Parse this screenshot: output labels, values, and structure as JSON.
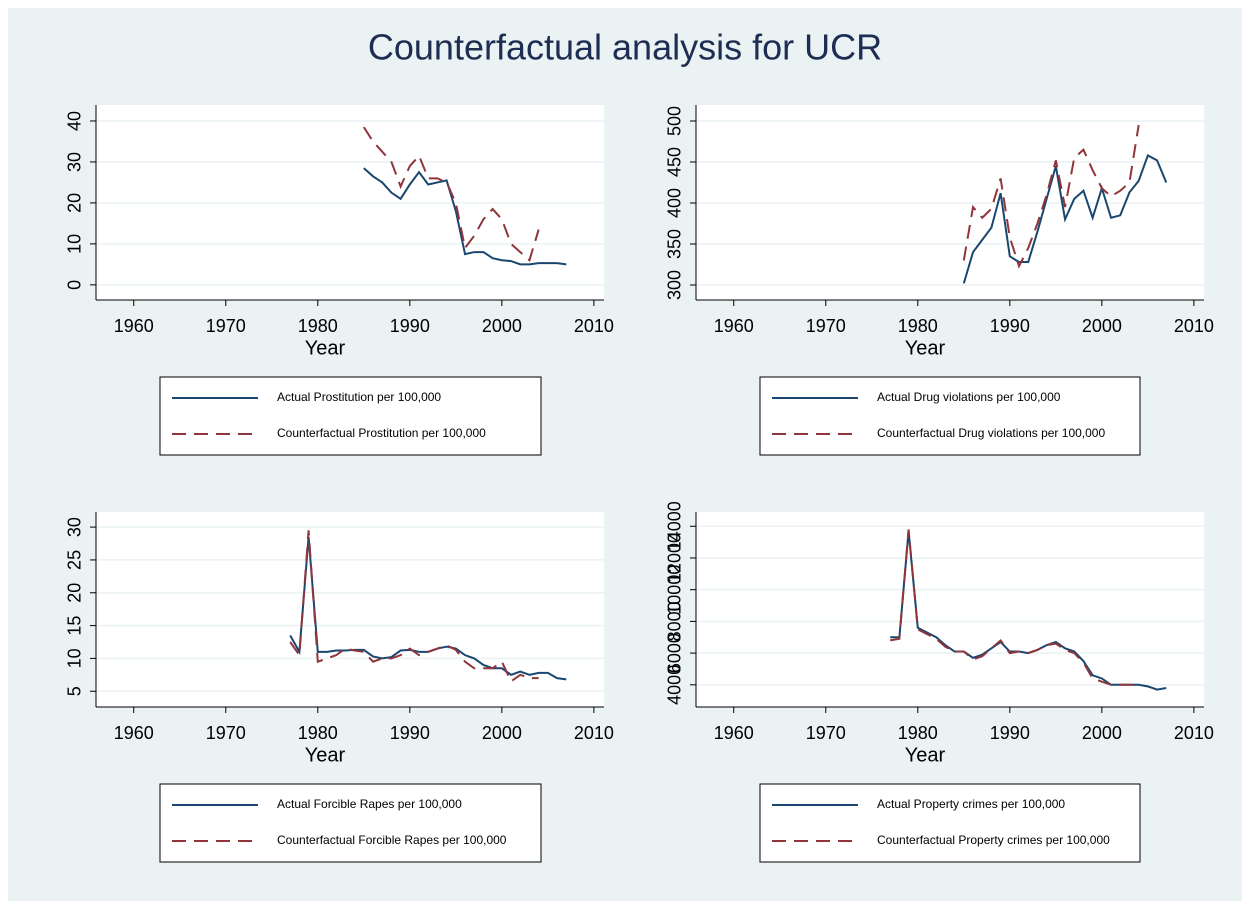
{
  "title": "Counterfactual analysis for UCR",
  "chart_data": [
    {
      "type": "line",
      "xlabel": "Year",
      "grid": true,
      "x": [
        1985,
        1986,
        1987,
        1988,
        1989,
        1990,
        1991,
        1992,
        1993,
        1994,
        1995,
        1996,
        1997,
        1998,
        1999,
        2000,
        2001,
        2002,
        2003,
        2004,
        2005,
        2006,
        2007
      ],
      "series": [
        {
          "name": "Actual Prostitution per 100,000",
          "color": "#1a476f",
          "dash": false,
          "values": [
            28.5,
            26.5,
            25,
            22.5,
            21,
            24.5,
            27.5,
            24.5,
            25,
            25.5,
            18,
            7.5,
            8,
            8,
            6.5,
            6,
            5.8,
            5,
            5,
            5.3,
            5.3,
            5.3,
            5
          ]
        },
        {
          "name": "Counterfactual Prostitution per 100,000",
          "color": "#90353b",
          "dash": true,
          "values": [
            38.5,
            35,
            32.5,
            30,
            24,
            29,
            31.5,
            26,
            26,
            25,
            20,
            9,
            12,
            16,
            18.5,
            16,
            10,
            8,
            6,
            13.5,
            null,
            null,
            null
          ]
        }
      ],
      "xlim": [
        1955.9,
        2011.1
      ],
      "xticks": [
        1960,
        1970,
        1980,
        1990,
        2000,
        2010
      ],
      "ylim": [
        -3.7,
        43.9
      ],
      "yticks": [
        0,
        10,
        20,
        30,
        40
      ]
    },
    {
      "type": "line",
      "xlabel": "Year",
      "grid": true,
      "x": [
        1985,
        1986,
        1987,
        1988,
        1989,
        1990,
        1991,
        1992,
        1993,
        1994,
        1995,
        1996,
        1997,
        1998,
        1999,
        2000,
        2001,
        2002,
        2003,
        2004,
        2005,
        2006,
        2007
      ],
      "series": [
        {
          "name": "Actual Drug violations per 100,000",
          "color": "#1a476f",
          "dash": false,
          "values": [
            302,
            340,
            355,
            370,
            412,
            335,
            328,
            328,
            365,
            405,
            445,
            380,
            405,
            415,
            382,
            418,
            382,
            385,
            413,
            427,
            458,
            452,
            425
          ]
        },
        {
          "name": "Counterfactual Drug violations per 100,000",
          "color": "#90353b",
          "dash": true,
          "values": [
            330,
            395,
            382,
            393,
            430,
            358,
            323,
            345,
            375,
            410,
            452,
            395,
            455,
            465,
            440,
            418,
            408,
            415,
            425,
            495,
            null,
            null,
            null
          ]
        }
      ],
      "xlim": [
        1955.9,
        2011.1
      ],
      "xticks": [
        1960,
        1970,
        1980,
        1990,
        2000,
        2010
      ],
      "ylim": [
        281.7,
        519.5
      ],
      "yticks": [
        300,
        350,
        400,
        450,
        500
      ]
    },
    {
      "type": "line",
      "xlabel": "Year",
      "grid": true,
      "x": [
        1977,
        1978,
        1979,
        1980,
        1981,
        1982,
        1983,
        1984,
        1985,
        1986,
        1987,
        1988,
        1989,
        1990,
        1991,
        1992,
        1993,
        1994,
        1995,
        1996,
        1997,
        1998,
        1999,
        2000,
        2001,
        2002,
        2003,
        2004,
        2005,
        2006,
        2007
      ],
      "series": [
        {
          "name": "Actual Forcible Rapes per 100,000",
          "color": "#1a476f",
          "dash": false,
          "values": [
            13.5,
            11,
            28.5,
            11,
            11,
            11.2,
            11.2,
            11.3,
            11.3,
            10.3,
            10,
            10.2,
            11.2,
            11.3,
            11,
            11,
            11.5,
            11.8,
            11.5,
            10.5,
            10,
            9,
            8.5,
            8.5,
            7.5,
            8,
            7.5,
            7.8,
            7.8,
            7,
            6.8
          ]
        },
        {
          "name": "Counterfactual Forcible Rapes per 100,000",
          "color": "#90353b",
          "dash": true,
          "values": [
            12.5,
            10.5,
            29.5,
            9.5,
            10,
            10.5,
            11.5,
            11.2,
            11,
            9.5,
            10,
            10,
            10.5,
            11.5,
            10.5,
            11,
            11.5,
            12,
            11.3,
            9.5,
            8.5,
            8.5,
            8.5,
            9.5,
            6.5,
            7.5,
            7,
            7,
            null,
            null,
            null
          ]
        }
      ],
      "xlim": [
        1955.9,
        2011.1
      ],
      "xticks": [
        1960,
        1970,
        1980,
        1990,
        2000,
        2010
      ],
      "ylim": [
        2.6,
        32.3
      ],
      "yticks": [
        5,
        10,
        15,
        20,
        25,
        30
      ]
    },
    {
      "type": "line",
      "xlabel": "Year",
      "grid": true,
      "x": [
        1977,
        1978,
        1979,
        1980,
        1981,
        1982,
        1983,
        1984,
        1985,
        1986,
        1987,
        1988,
        1989,
        1990,
        1991,
        1992,
        1993,
        1994,
        1995,
        1996,
        1997,
        1998,
        1999,
        2000,
        2001,
        2002,
        2003,
        2004,
        2005,
        2006,
        2007
      ],
      "series": [
        {
          "name": "Actual Property crimes per 100,000",
          "color": "#1a476f",
          "dash": false,
          "values": [
            7000,
            7000,
            13700,
            7600,
            7300,
            7000,
            6500,
            6100,
            6100,
            5700,
            5900,
            6300,
            6700,
            6100,
            6100,
            6000,
            6200,
            6500,
            6700,
            6300,
            6100,
            5500,
            4600,
            4400,
            4000,
            4000,
            4000,
            4000,
            3900,
            3700,
            3800
          ]
        },
        {
          "name": "Counterfactual Property crimes per 100,000",
          "color": "#90353b",
          "dash": true,
          "values": [
            6800,
            6900,
            13800,
            7500,
            7200,
            6900,
            6400,
            6100,
            6100,
            5600,
            5800,
            6300,
            6800,
            6000,
            6100,
            6000,
            6200,
            6500,
            6600,
            6200,
            6000,
            5400,
            4400,
            4200,
            4000,
            4000,
            4000,
            4000,
            null,
            null,
            null
          ]
        }
      ],
      "xlim": [
        1955.9,
        2011.1
      ],
      "xticks": [
        1960,
        1970,
        1980,
        1990,
        2000,
        2010
      ],
      "ylim": [
        2600,
        14900
      ],
      "yticks": [
        4000,
        6000,
        8000,
        10000,
        12000,
        14000
      ]
    }
  ]
}
